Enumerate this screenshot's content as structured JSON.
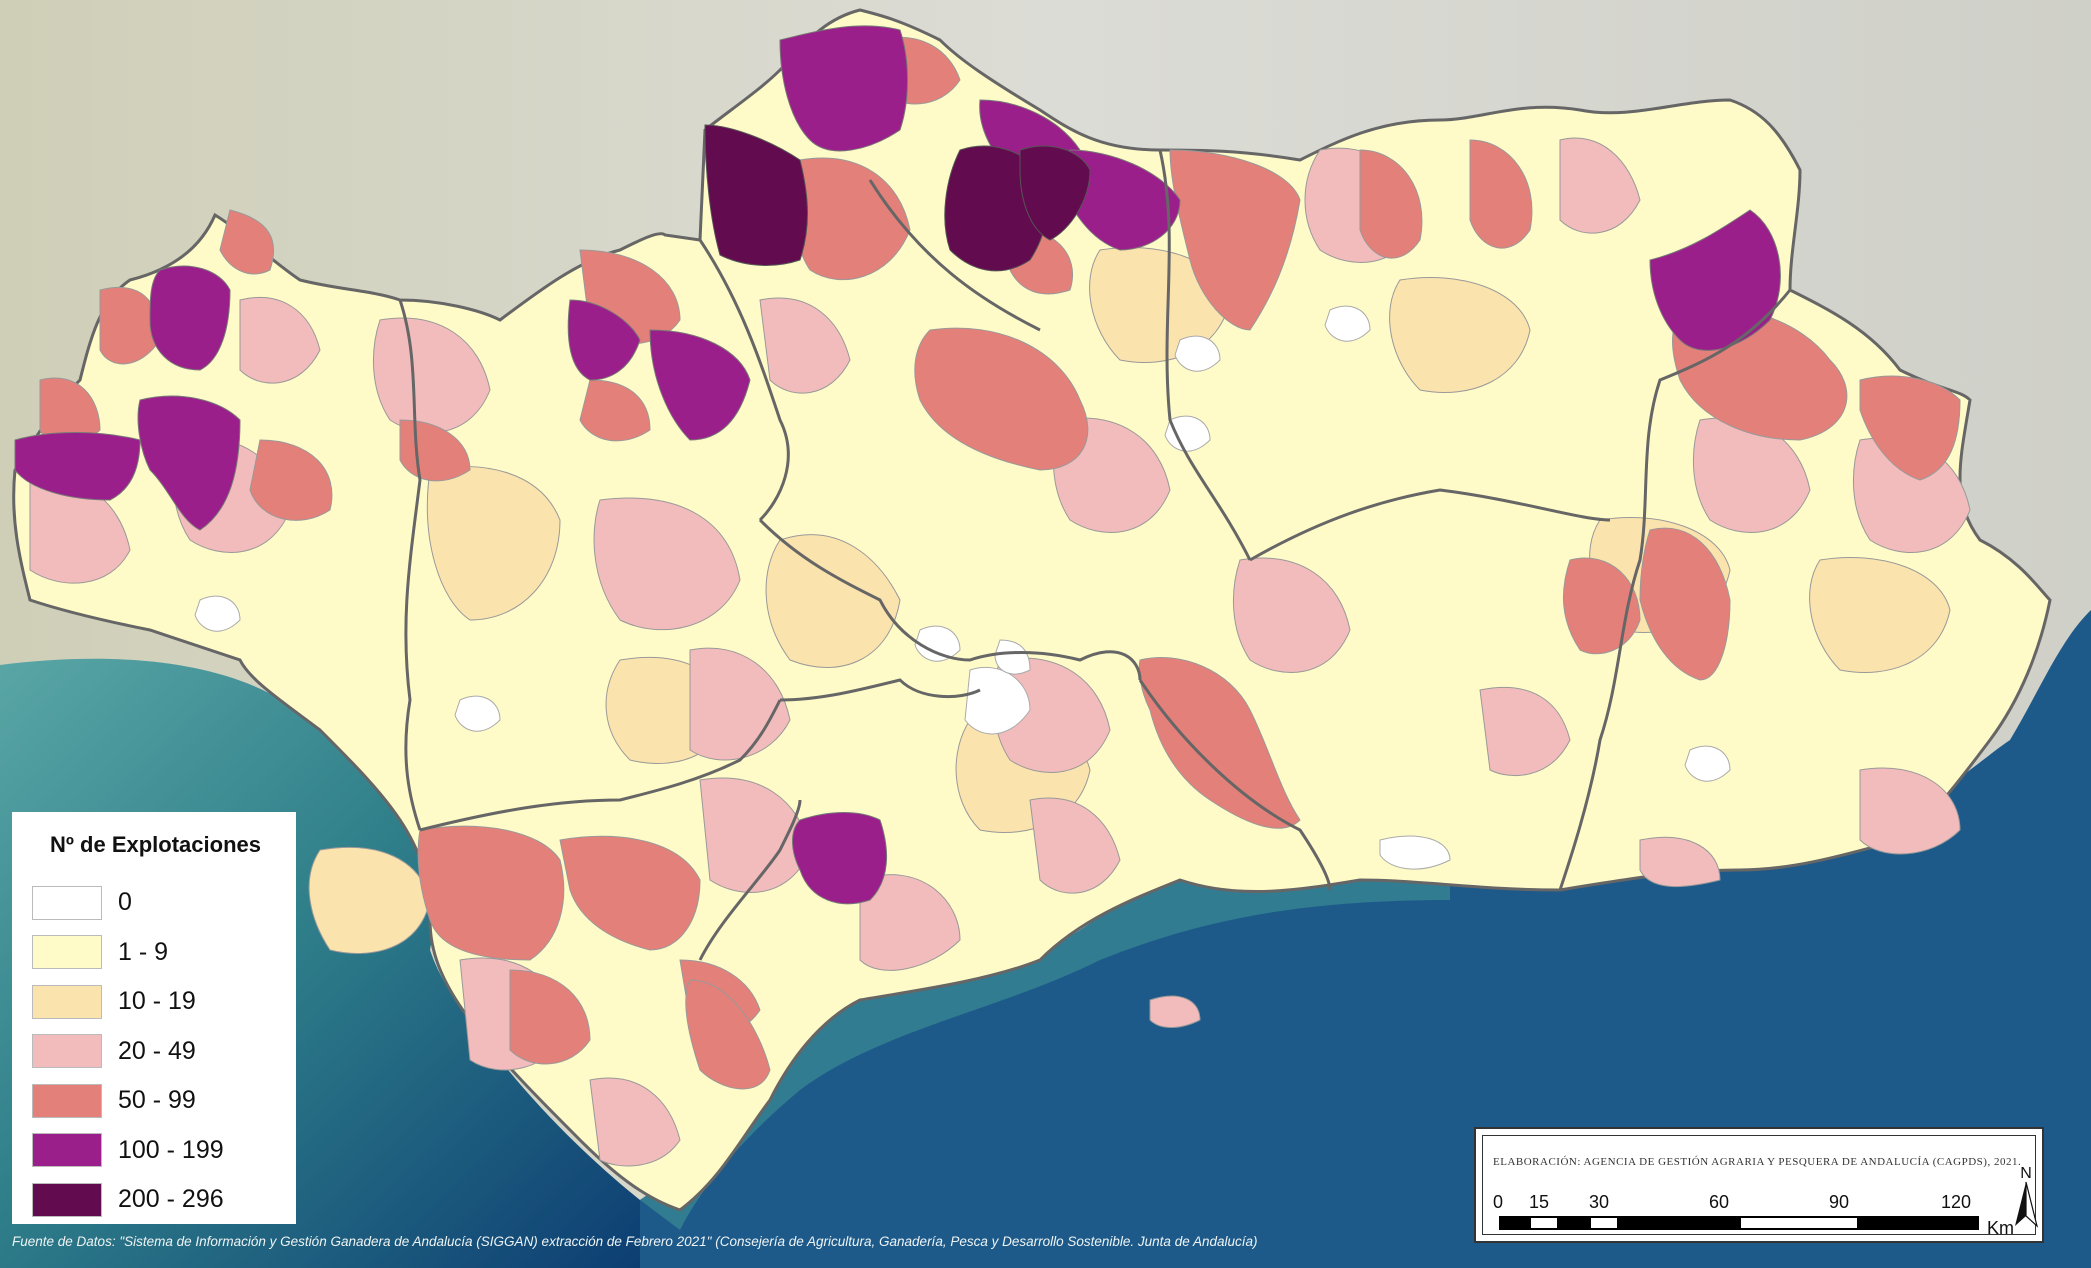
{
  "legend": {
    "title": "Nº de Explotaciones",
    "classes": [
      {
        "label": "0",
        "color": "#ffffff"
      },
      {
        "label": "1 - 9",
        "color": "#fffbc8"
      },
      {
        "label": "10 - 19",
        "color": "#fbe3ae"
      },
      {
        "label": "20 - 49",
        "color": "#f2bcbc"
      },
      {
        "label": "50 - 99",
        "color": "#e4807a"
      },
      {
        "label": "100 - 199",
        "color": "#9b1f8a"
      },
      {
        "label": "200 - 296",
        "color": "#620c4f"
      }
    ]
  },
  "credit": {
    "text": "ELABORACIÓN: AGENCIA DE GESTIÓN AGRARIA Y PESQUERA DE ANDALUCÍA (CAGPDS), 2021.",
    "scale_ticks": [
      "0",
      "15",
      "30",
      "60",
      "90",
      "120"
    ],
    "scale_unit": "Km",
    "north_label": "N"
  },
  "source": "Fuente de Datos: \"Sistema de Información y Gestión Ganadera de Andalucía (SIGGAN) extracción de Febrero 2021\" (Consejería de Agricultura, Ganadería, Pesca y Desarrollo Sostenible. Junta de Andalucía)",
  "colors": {
    "land_background": "#d2d2c8",
    "sea_shallow": "#3f8f93",
    "sea_deep": "#0d3e73",
    "border": "#666666"
  }
}
